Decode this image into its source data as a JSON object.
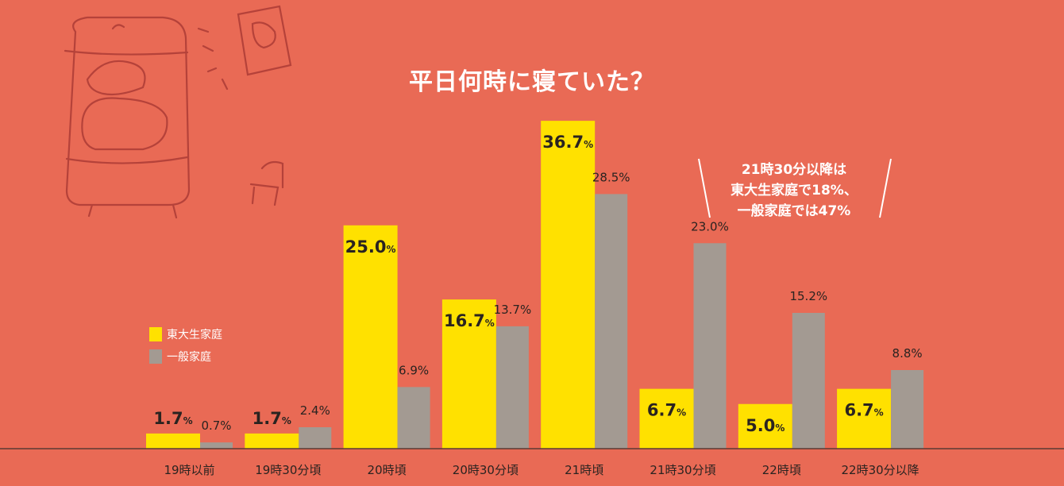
{
  "title": "平日何時に寝ていた？",
  "note": {
    "lines": [
      "21時30分以降は",
      "東大生家庭で18%、",
      "一般家庭では47%"
    ]
  },
  "colors": {
    "background": "#E96A55",
    "todai": "#FFE100",
    "general": "#A39A92",
    "axis": "#5a3a34"
  },
  "chart_data": {
    "type": "bar",
    "categories": [
      "19時以前",
      "19時30分頃",
      "20時頃",
      "20時30分頃",
      "21時頃",
      "21時30分頃",
      "22時頃",
      "22時30分以降"
    ],
    "series": [
      {
        "name": "東大生家庭",
        "values": [
          1.7,
          1.7,
          25.0,
          16.7,
          36.7,
          6.7,
          5.0,
          6.7
        ],
        "labels": [
          "1.7",
          "1.7",
          "25.0",
          "16.7",
          "36.7",
          "6.7",
          "5.0",
          "6.7"
        ]
      },
      {
        "name": "一般家庭",
        "values": [
          0.7,
          2.4,
          6.9,
          13.7,
          28.5,
          23.0,
          15.2,
          8.8
        ],
        "labels": [
          "0.7",
          "2.4",
          "6.9",
          "13.7",
          "28.5",
          "23.0",
          "15.2",
          "8.8"
        ]
      }
    ],
    "unit": "%",
    "ylim": [
      0,
      40
    ],
    "legend": "left"
  }
}
